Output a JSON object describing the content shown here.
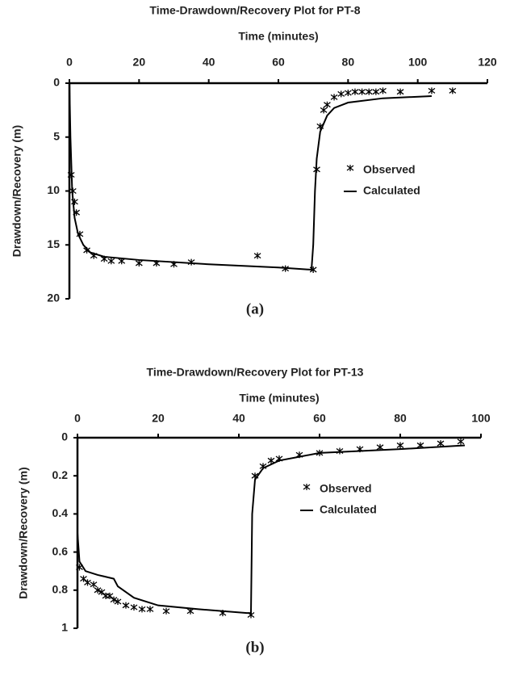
{
  "chart_data": [
    {
      "type": "line",
      "title": "Time-Drawdown/Recovery Plot for PT-8",
      "x_label": "Time (minutes)",
      "y_label": "Drawdown/Recovery (m)",
      "caption": "(a)",
      "xlim": [
        0,
        120
      ],
      "xticks": [
        0,
        20,
        40,
        60,
        80,
        100,
        120
      ],
      "ylim": [
        0,
        20
      ],
      "yticks": [
        0,
        5,
        10,
        15,
        20
      ],
      "y_inverted": true,
      "x_axis_position": "top",
      "legend": "center right",
      "grid": false,
      "series": [
        {
          "name": "Observed",
          "color": "#000000",
          "mode": "markers",
          "x": [
            0.5,
            1,
            1.5,
            2,
            3,
            5,
            7,
            10,
            12,
            15,
            20,
            25,
            30,
            35,
            54,
            62,
            70,
            71,
            72,
            73,
            74,
            76,
            78,
            80,
            82,
            84,
            86,
            88,
            90,
            95,
            104,
            110
          ],
          "values": [
            8.5,
            10,
            11,
            12,
            14,
            15.5,
            16,
            16.3,
            16.5,
            16.5,
            16.7,
            16.7,
            16.8,
            16.6,
            16,
            17.2,
            17.3,
            8,
            4,
            2.5,
            2,
            1.3,
            1,
            0.9,
            0.8,
            0.8,
            0.8,
            0.8,
            0.7,
            0.8,
            0.7,
            0.7
          ]
        },
        {
          "name": "Calculated",
          "color": "#000000",
          "mode": "lines",
          "x": [
            0,
            0.3,
            0.8,
            1.5,
            2.5,
            4,
            6,
            10,
            20,
            40,
            60,
            69.5,
            70,
            70.5,
            71,
            72,
            74,
            76,
            80,
            90,
            104
          ],
          "values": [
            0,
            5,
            10,
            12.5,
            14,
            15,
            15.7,
            16.1,
            16.4,
            16.8,
            17.1,
            17.3,
            15,
            10,
            7,
            4.5,
            3,
            2.3,
            1.8,
            1.4,
            1.2
          ]
        }
      ]
    },
    {
      "type": "line",
      "title": "Time-Drawdown/Recovery Plot for PT-13",
      "x_label": "Time (minutes)",
      "y_label": "Drawdown/Recovery (m)",
      "caption": "(b)",
      "xlim": [
        0,
        100
      ],
      "xticks": [
        0,
        20,
        40,
        60,
        80,
        100
      ],
      "ylim": [
        0,
        1
      ],
      "yticks": [
        0,
        0.2,
        0.4,
        0.6,
        0.8,
        1
      ],
      "y_inverted": true,
      "x_axis_position": "top",
      "legend": "center right",
      "grid": false,
      "series": [
        {
          "name": "Observed",
          "color": "#000000",
          "mode": "markers",
          "x": [
            0.5,
            1.5,
            2.5,
            4,
            5,
            6,
            7,
            8,
            9,
            10,
            12,
            14,
            16,
            18,
            22,
            28,
            36,
            43,
            44,
            46,
            48,
            50,
            55,
            60,
            65,
            70,
            75,
            80,
            85,
            90,
            95
          ],
          "values": [
            0.68,
            0.74,
            0.76,
            0.77,
            0.8,
            0.81,
            0.83,
            0.83,
            0.85,
            0.86,
            0.88,
            0.89,
            0.9,
            0.9,
            0.91,
            0.91,
            0.92,
            0.93,
            0.2,
            0.15,
            0.12,
            0.11,
            0.09,
            0.08,
            0.07,
            0.06,
            0.05,
            0.04,
            0.04,
            0.03,
            0.02
          ]
        },
        {
          "name": "Calculated",
          "color": "#000000",
          "mode": "lines",
          "x": [
            0,
            0.5,
            2,
            5,
            9,
            10,
            14,
            20,
            30,
            42,
            43,
            43.3,
            44,
            46,
            50,
            55,
            60,
            70,
            80,
            96
          ],
          "values": [
            0.5,
            0.65,
            0.7,
            0.72,
            0.74,
            0.78,
            0.84,
            0.88,
            0.9,
            0.92,
            0.92,
            0.4,
            0.22,
            0.16,
            0.12,
            0.1,
            0.08,
            0.07,
            0.06,
            0.04
          ]
        }
      ]
    }
  ]
}
